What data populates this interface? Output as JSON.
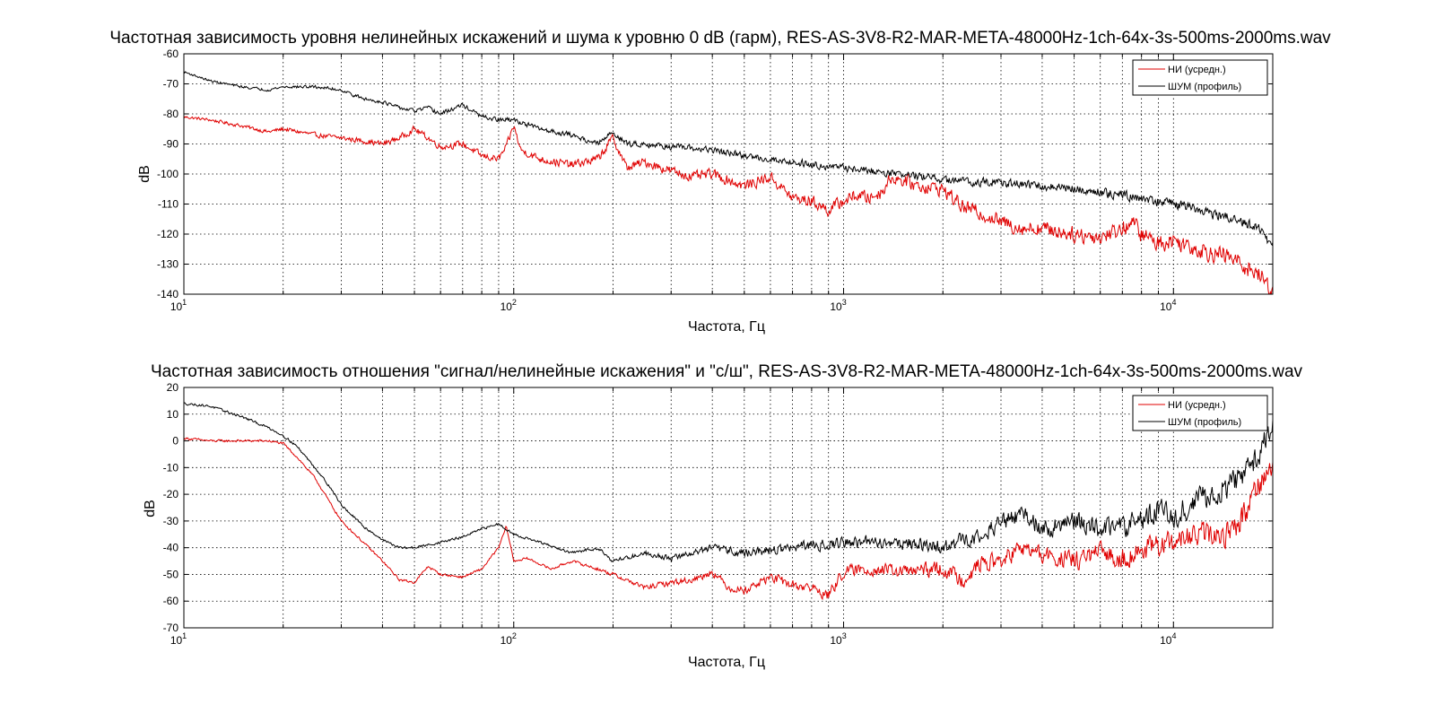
{
  "chart_data": [
    {
      "type": "line",
      "title": "Частотная зависимость уровня нелинейных искажений и шума к уровню 0 dB (гарм), RES-AS-3V8-R2-MAR-META-48000Hz-1ch-64x-3s-500ms-2000ms.wav",
      "xlabel": "Частота, Гц",
      "ylabel": "dB",
      "xscale": "log",
      "xlim": [
        10,
        20000
      ],
      "ylim": [
        -140,
        -60
      ],
      "yticks": [
        -60,
        -70,
        -80,
        -90,
        -100,
        -110,
        -120,
        -130,
        -140
      ],
      "xticks": [
        10,
        100,
        1000,
        10000
      ],
      "grid": true,
      "legend": "top-right",
      "series": [
        {
          "name": "НИ (усредн.)",
          "color": "#e00000",
          "x": [
            10,
            12,
            15,
            18,
            20,
            25,
            30,
            35,
            40,
            45,
            50,
            55,
            60,
            70,
            80,
            90,
            95,
            100,
            105,
            120,
            150,
            180,
            200,
            220,
            250,
            300,
            350,
            400,
            500,
            600,
            700,
            800,
            900,
            1000,
            1100,
            1200,
            1300,
            1400,
            1500,
            1700,
            2000,
            2300,
            2600,
            3000,
            3500,
            4000,
            5000,
            6000,
            7000,
            7500,
            8000,
            9000,
            10000,
            12000,
            15000,
            18000,
            20000
          ],
          "values": [
            -81,
            -82,
            -84,
            -86,
            -85,
            -87,
            -88,
            -89,
            -90,
            -88,
            -85,
            -88,
            -91,
            -90,
            -94,
            -95,
            -91,
            -84,
            -92,
            -95,
            -97,
            -95,
            -88,
            -98,
            -96,
            -99,
            -101,
            -100,
            -104,
            -101,
            -108,
            -109,
            -112,
            -109,
            -107,
            -108,
            -106,
            -101,
            -102,
            -104,
            -105,
            -111,
            -113,
            -116,
            -118,
            -118,
            -120,
            -121,
            -118,
            -116,
            -120,
            -123,
            -122,
            -125,
            -128,
            -133,
            -139
          ]
        },
        {
          "name": "ШУМ (профиль)",
          "color": "#000000",
          "x": [
            10,
            12,
            15,
            18,
            20,
            25,
            30,
            35,
            40,
            45,
            50,
            55,
            60,
            70,
            80,
            90,
            100,
            120,
            150,
            180,
            200,
            220,
            250,
            300,
            400,
            500,
            700,
            1000,
            1500,
            2000,
            3000,
            4000,
            5000,
            6000,
            7000,
            8000,
            10000,
            12000,
            15000,
            18000,
            20000
          ],
          "values": [
            -66,
            -69,
            -71,
            -72,
            -71,
            -71,
            -72,
            -75,
            -76,
            -78,
            -79,
            -78,
            -80,
            -77,
            -81,
            -82,
            -82,
            -85,
            -87,
            -90,
            -86,
            -90,
            -90,
            -91,
            -92,
            -94,
            -96,
            -98,
            -100,
            -102,
            -103,
            -104,
            -105,
            -106,
            -107,
            -108,
            -110,
            -112,
            -115,
            -118,
            -124
          ]
        }
      ]
    },
    {
      "type": "line",
      "title": "Частотная зависимость отношения \"сигнал/нелинейные искажения\" и \"с/ш\", RES-AS-3V8-R2-MAR-META-48000Hz-1ch-64x-3s-500ms-2000ms.wav",
      "xlabel": "Частота, Гц",
      "ylabel": "dB",
      "xscale": "log",
      "xlim": [
        10,
        20000
      ],
      "ylim": [
        -70,
        20
      ],
      "yticks": [
        20,
        10,
        0,
        -10,
        -20,
        -30,
        -40,
        -50,
        -60,
        -70
      ],
      "xticks": [
        10,
        100,
        1000,
        10000
      ],
      "grid": true,
      "legend": "top-right",
      "series": [
        {
          "name": "НИ (усредн.)",
          "color": "#e00000",
          "x": [
            10,
            12,
            15,
            18,
            20,
            22,
            25,
            28,
            30,
            35,
            40,
            45,
            50,
            55,
            60,
            70,
            80,
            90,
            95,
            100,
            110,
            130,
            150,
            180,
            200,
            250,
            300,
            350,
            400,
            450,
            500,
            600,
            700,
            800,
            900,
            1000,
            1200,
            1500,
            2000,
            2300,
            2600,
            3000,
            3500,
            4000,
            5000,
            6000,
            7000,
            8000,
            10000,
            12000,
            14000,
            16000,
            18000,
            20000
          ],
          "values": [
            1,
            0,
            0,
            0,
            -1,
            -6,
            -14,
            -24,
            -30,
            -38,
            -45,
            -52,
            -53,
            -47,
            -50,
            -51,
            -48,
            -40,
            -32,
            -45,
            -44,
            -48,
            -45,
            -48,
            -50,
            -55,
            -53,
            -52,
            -49,
            -55,
            -56,
            -51,
            -54,
            -55,
            -58,
            -49,
            -48,
            -49,
            -48,
            -52,
            -46,
            -45,
            -40,
            -43,
            -45,
            -42,
            -44,
            -41,
            -38,
            -35,
            -36,
            -30,
            -16,
            -10
          ]
        },
        {
          "name": "ШУМ (профиль)",
          "color": "#000000",
          "x": [
            10,
            12,
            15,
            18,
            20,
            22,
            25,
            28,
            30,
            35,
            40,
            45,
            50,
            60,
            70,
            80,
            90,
            100,
            120,
            150,
            180,
            200,
            250,
            300,
            400,
            500,
            700,
            1000,
            1500,
            2000,
            2500,
            3000,
            3500,
            4000,
            5000,
            6000,
            7000,
            8000,
            9000,
            10000,
            12000,
            14000,
            16000,
            18000,
            20000
          ],
          "values": [
            14,
            13,
            9,
            5,
            2,
            -2,
            -10,
            -18,
            -24,
            -32,
            -37,
            -40,
            -40,
            -38,
            -36,
            -33,
            -31,
            -35,
            -38,
            -42,
            -40,
            -45,
            -42,
            -44,
            -40,
            -42,
            -40,
            -38,
            -38,
            -40,
            -36,
            -31,
            -27,
            -33,
            -30,
            -33,
            -32,
            -30,
            -25,
            -28,
            -22,
            -18,
            -14,
            -5,
            5
          ]
        }
      ]
    }
  ]
}
